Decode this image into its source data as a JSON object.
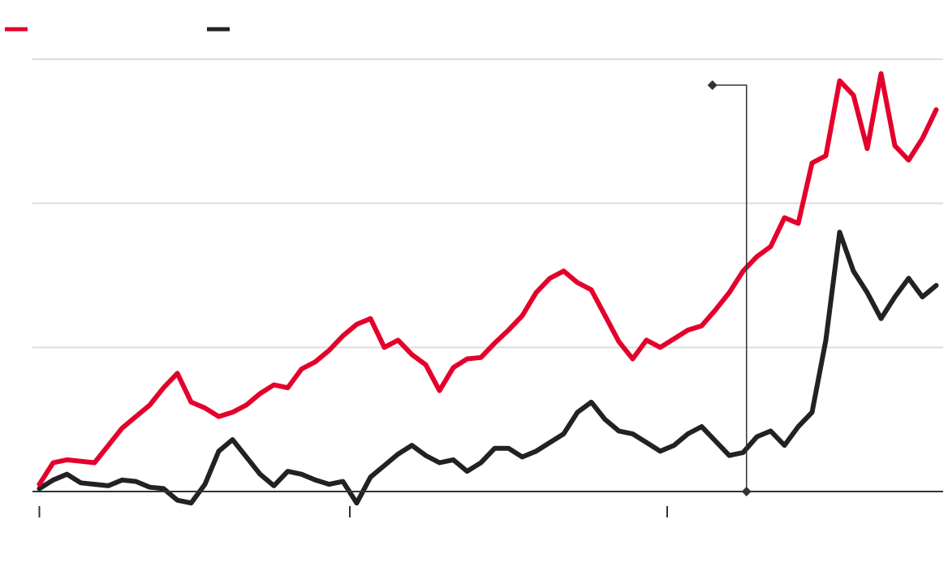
{
  "chart_data": {
    "type": "line",
    "title": "",
    "xlabel": "",
    "ylabel": "",
    "x": [
      0,
      2,
      4,
      6,
      8,
      10,
      12,
      14,
      16,
      18,
      20,
      22,
      24,
      26,
      28,
      30,
      32,
      34,
      36,
      38,
      40,
      42,
      44,
      46,
      48,
      50,
      52,
      54,
      56,
      58,
      60,
      62,
      64,
      66,
      68,
      70,
      72,
      74,
      76,
      78,
      80,
      82,
      84,
      86,
      88,
      90,
      92,
      94,
      96,
      98,
      100,
      102,
      104,
      106,
      108,
      110,
      112,
      114,
      116,
      118,
      120,
      122,
      124,
      126,
      128,
      130
    ],
    "xlim": [
      -1,
      131
    ],
    "ylim": [
      0,
      3
    ],
    "grid": true,
    "series": [
      {
        "name": "",
        "color": "#e4002b",
        "values": [
          0.05,
          0.2,
          0.22,
          0.21,
          0.2,
          0.32,
          0.44,
          0.52,
          0.6,
          0.72,
          0.82,
          0.62,
          0.58,
          0.52,
          0.55,
          0.6,
          0.68,
          0.74,
          0.72,
          0.85,
          0.9,
          0.98,
          1.08,
          1.16,
          1.2,
          1.0,
          1.05,
          0.95,
          0.88,
          0.7,
          0.86,
          0.92,
          0.93,
          1.03,
          1.12,
          1.22,
          1.38,
          1.48,
          1.53,
          1.45,
          1.4,
          1.22,
          1.04,
          0.92,
          1.05,
          1.0,
          1.06,
          1.12,
          1.15,
          1.26,
          1.38,
          1.53,
          1.63,
          1.7,
          1.9,
          1.86,
          2.28,
          2.33,
          2.85,
          2.75,
          2.38,
          2.9,
          2.4,
          2.3,
          2.45,
          2.65
        ]
      },
      {
        "name": "",
        "color": "#222222",
        "values": [
          0.02,
          0.08,
          0.12,
          0.06,
          0.05,
          0.04,
          0.08,
          0.07,
          0.03,
          0.02,
          -0.06,
          -0.08,
          0.05,
          0.28,
          0.36,
          0.24,
          0.12,
          0.04,
          0.14,
          0.12,
          0.08,
          0.05,
          0.07,
          -0.08,
          0.1,
          0.18,
          0.26,
          0.32,
          0.25,
          0.2,
          0.22,
          0.14,
          0.2,
          0.3,
          0.3,
          0.24,
          0.28,
          0.34,
          0.4,
          0.55,
          0.62,
          0.5,
          0.42,
          0.4,
          0.34,
          0.28,
          0.32,
          0.4,
          0.45,
          0.35,
          0.25,
          0.27,
          0.38,
          0.42,
          0.32,
          0.45,
          0.55,
          1.05,
          1.8,
          1.53,
          1.38,
          1.2,
          1.35,
          1.48,
          1.35,
          1.43
        ]
      }
    ],
    "annotations": [
      {
        "x": 102.5,
        "y_top": 2.82,
        "y_bottom": 0,
        "label": ""
      }
    ],
    "x_ticks": [
      {
        "x": 0,
        "label": ""
      },
      {
        "x": 45,
        "label": ""
      },
      {
        "x": 91,
        "label": ""
      }
    ]
  }
}
